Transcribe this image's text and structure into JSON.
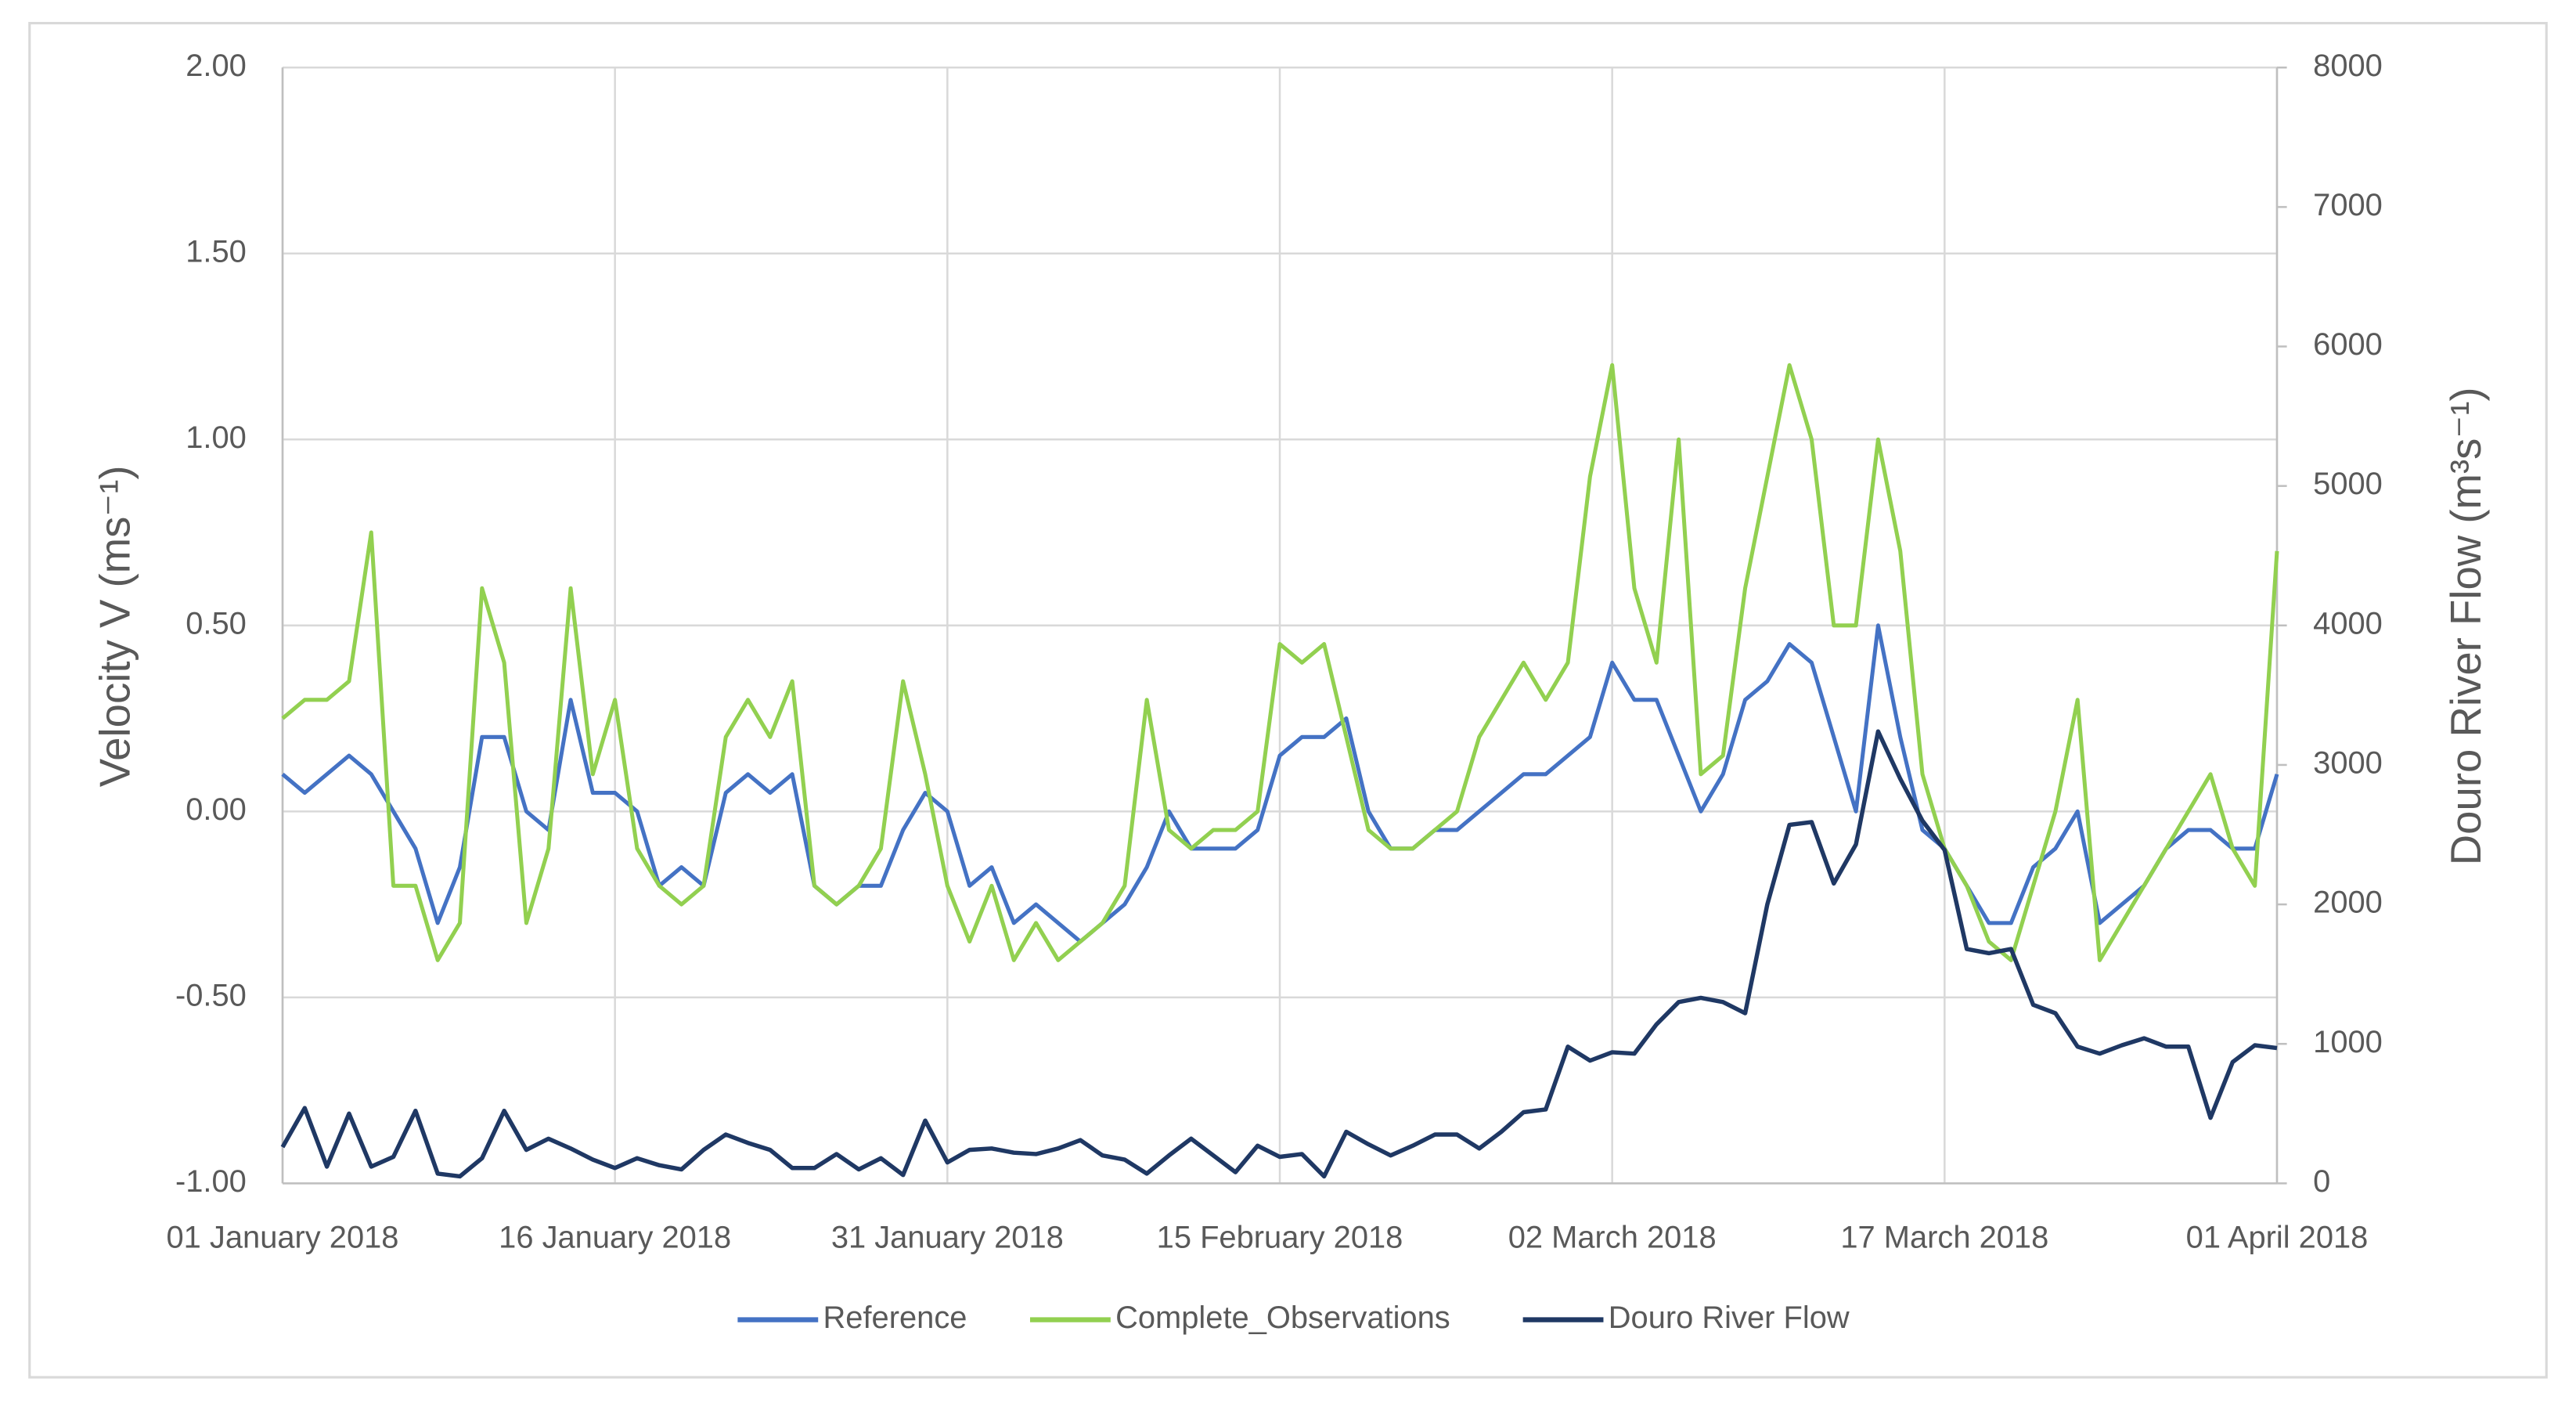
{
  "chart_data": {
    "type": "line",
    "y_label": "Velocity V (ms⁻¹)",
    "y2_label": "Douro River Flow (m³s⁻¹)",
    "x": [
      "2018-01-01",
      "2018-01-02",
      "2018-01-03",
      "2018-01-04",
      "2018-01-05",
      "2018-01-06",
      "2018-01-07",
      "2018-01-08",
      "2018-01-09",
      "2018-01-10",
      "2018-01-11",
      "2018-01-12",
      "2018-01-13",
      "2018-01-14",
      "2018-01-15",
      "2018-01-16",
      "2018-01-17",
      "2018-01-18",
      "2018-01-19",
      "2018-01-20",
      "2018-01-21",
      "2018-01-22",
      "2018-01-23",
      "2018-01-24",
      "2018-01-25",
      "2018-01-26",
      "2018-01-27",
      "2018-01-28",
      "2018-01-29",
      "2018-01-30",
      "2018-01-31",
      "2018-02-01",
      "2018-02-02",
      "2018-02-03",
      "2018-02-04",
      "2018-02-05",
      "2018-02-06",
      "2018-02-07",
      "2018-02-08",
      "2018-02-09",
      "2018-02-10",
      "2018-02-11",
      "2018-02-12",
      "2018-02-13",
      "2018-02-14",
      "2018-02-15",
      "2018-02-16",
      "2018-02-17",
      "2018-02-18",
      "2018-02-19",
      "2018-02-20",
      "2018-02-21",
      "2018-02-22",
      "2018-02-23",
      "2018-02-24",
      "2018-02-25",
      "2018-02-26",
      "2018-02-27",
      "2018-02-28",
      "2018-03-01",
      "2018-03-02",
      "2018-03-03",
      "2018-03-04",
      "2018-03-05",
      "2018-03-06",
      "2018-03-07",
      "2018-03-08",
      "2018-03-09",
      "2018-03-10",
      "2018-03-11",
      "2018-03-12",
      "2018-03-13",
      "2018-03-14",
      "2018-03-15",
      "2018-03-16",
      "2018-03-17",
      "2018-03-18",
      "2018-03-19",
      "2018-03-20",
      "2018-03-21",
      "2018-03-22",
      "2018-03-23",
      "2018-03-24",
      "2018-03-25",
      "2018-03-26",
      "2018-03-27",
      "2018-03-28",
      "2018-03-29",
      "2018-03-30",
      "2018-03-31",
      "2018-04-01"
    ],
    "series": [
      {
        "name": "Reference",
        "color": "#4472c4",
        "values": [
          0.1,
          0.05,
          0.1,
          0.15,
          0.1,
          0.0,
          -0.1,
          -0.3,
          -0.15,
          0.2,
          0.2,
          0.0,
          -0.05,
          0.3,
          0.05,
          0.05,
          0.0,
          -0.2,
          -0.15,
          -0.2,
          0.05,
          0.1,
          0.05,
          0.1,
          -0.2,
          -0.25,
          -0.2,
          -0.2,
          -0.05,
          0.05,
          0.0,
          -0.2,
          -0.15,
          -0.3,
          -0.25,
          -0.3,
          -0.35,
          -0.3,
          -0.25,
          -0.15,
          0.0,
          -0.1,
          -0.1,
          -0.1,
          -0.05,
          0.15,
          0.2,
          0.2,
          0.25,
          0.0,
          -0.1,
          -0.1,
          -0.05,
          -0.05,
          0.0,
          0.05,
          0.1,
          0.1,
          0.15,
          0.2,
          0.4,
          0.3,
          0.3,
          0.15,
          0.0,
          0.1,
          0.3,
          0.35,
          0.45,
          0.4,
          0.2,
          0.0,
          0.5,
          0.2,
          -0.05,
          -0.1,
          -0.2,
          -0.3,
          -0.3,
          -0.15,
          -0.1,
          0.0,
          -0.3,
          -0.25,
          -0.2,
          -0.1,
          -0.05,
          -0.05,
          -0.1,
          -0.1,
          0.1
        ]
      },
      {
        "name": "Complete_Observations",
        "color": "#92d050",
        "values": [
          0.25,
          0.3,
          0.3,
          0.35,
          0.75,
          -0.2,
          -0.2,
          -0.4,
          -0.3,
          0.6,
          0.4,
          -0.3,
          -0.1,
          0.6,
          0.1,
          0.3,
          -0.1,
          -0.2,
          -0.25,
          -0.2,
          0.2,
          0.3,
          0.2,
          0.35,
          -0.2,
          -0.25,
          -0.2,
          -0.1,
          0.35,
          0.1,
          -0.2,
          -0.35,
          -0.2,
          -0.4,
          -0.3,
          -0.4,
          -0.35,
          -0.3,
          -0.2,
          0.3,
          -0.05,
          -0.1,
          -0.05,
          -0.05,
          0.0,
          0.45,
          0.4,
          0.45,
          0.2,
          -0.05,
          -0.1,
          -0.1,
          -0.05,
          0.0,
          0.2,
          0.3,
          0.4,
          0.3,
          0.4,
          0.9,
          1.2,
          0.6,
          0.4,
          1.0,
          0.1,
          0.15,
          0.6,
          0.9,
          1.2,
          1.0,
          0.5,
          0.5,
          1.0,
          0.7,
          0.1,
          -0.1,
          -0.2,
          -0.35,
          -0.4,
          -0.2,
          0.0,
          0.3,
          -0.4,
          -0.3,
          -0.2,
          -0.1,
          0.0,
          0.1,
          -0.1,
          -0.2,
          0.7
        ]
      },
      {
        "name": "Douro River Flow",
        "color": "#1f3864",
        "axis": "y2",
        "values": [
          260,
          540,
          120,
          500,
          120,
          190,
          520,
          70,
          50,
          180,
          520,
          240,
          320,
          250,
          170,
          110,
          180,
          130,
          100,
          240,
          350,
          290,
          240,
          110,
          110,
          210,
          100,
          180,
          60,
          450,
          150,
          240,
          250,
          220,
          210,
          250,
          310,
          200,
          170,
          70,
          200,
          320,
          200,
          80,
          270,
          190,
          210,
          50,
          370,
          280,
          200,
          270,
          350,
          350,
          250,
          370,
          510,
          530,
          980,
          880,
          940,
          930,
          1140,
          1300,
          1330,
          1300,
          1220,
          2000,
          2570,
          2590,
          2150,
          2430,
          3240,
          2900,
          2600,
          2390,
          1680,
          1650,
          1680,
          1280,
          1220,
          980,
          930,
          990,
          1040,
          980,
          980,
          470,
          870,
          990,
          970
        ]
      }
    ],
    "xlim": [
      "2018-01-01",
      "2018-04-01"
    ],
    "xticks": [
      {
        "value": "2018-01-01",
        "label": "01 January 2018"
      },
      {
        "value": "2018-01-16",
        "label": "16 January 2018"
      },
      {
        "value": "2018-01-31",
        "label": "31 January 2018"
      },
      {
        "value": "2018-02-15",
        "label": "15 February 2018"
      },
      {
        "value": "2018-03-02",
        "label": "02 March 2018"
      },
      {
        "value": "2018-03-17",
        "label": "17 March 2018"
      },
      {
        "value": "2018-04-01",
        "label": "01 April 2018"
      }
    ],
    "ylim": [
      -1,
      2
    ],
    "yticks": [
      {
        "value": 2,
        "label": "2.00"
      },
      {
        "value": 1.5,
        "label": "1.50"
      },
      {
        "value": 1,
        "label": "1.00"
      },
      {
        "value": 0.5,
        "label": "0.50"
      },
      {
        "value": 0,
        "label": "0.00"
      },
      {
        "value": -0.5,
        "label": "-0.50"
      },
      {
        "value": -1,
        "label": "-1.00"
      }
    ],
    "y2lim": [
      0,
      8000
    ],
    "y2ticks": [
      0,
      1000,
      2000,
      3000,
      4000,
      5000,
      6000,
      7000,
      8000
    ],
    "grid": true,
    "legend": "bottom"
  }
}
